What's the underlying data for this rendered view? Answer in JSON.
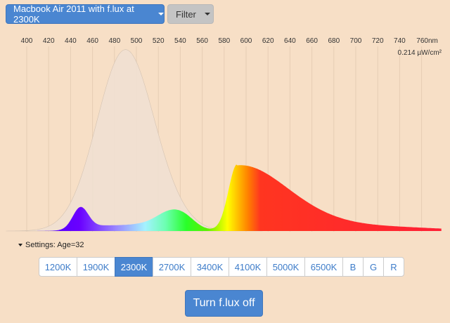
{
  "toolbar": {
    "device_label": "Macbook Air 2011 with f.lux at 2300K",
    "filter_label": "Filter"
  },
  "spectrum": {
    "wavelength_ticks": [
      "400",
      "420",
      "440",
      "460",
      "480",
      "500",
      "520",
      "540",
      "560",
      "580",
      "600",
      "620",
      "640",
      "660",
      "680",
      "700",
      "720",
      "740",
      "760nm"
    ],
    "power_label": "0.214 µW/cm²"
  },
  "settings": {
    "label": "Settings: Age=32"
  },
  "temperatures": [
    {
      "label": "1200K",
      "active": false
    },
    {
      "label": "1900K",
      "active": false
    },
    {
      "label": "2300K",
      "active": true
    },
    {
      "label": "2700K",
      "active": false
    },
    {
      "label": "3400K",
      "active": false
    },
    {
      "label": "4100K",
      "active": false
    },
    {
      "label": "5000K",
      "active": false
    },
    {
      "label": "6500K",
      "active": false
    },
    {
      "label": "B",
      "active": false
    },
    {
      "label": "G",
      "active": false
    },
    {
      "label": "R",
      "active": false
    }
  ],
  "actions": {
    "toggle_label": "Turn f.lux off"
  },
  "colors": {
    "background": "#f7dfc6",
    "primary_button": "#4a86d1",
    "sensitivity_fill": "#efe0d2"
  }
}
